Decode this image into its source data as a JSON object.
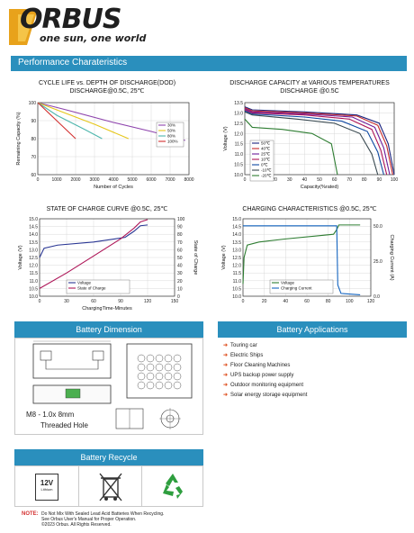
{
  "logo": {
    "brand": "ORBUS",
    "tagline": "one sun, one world"
  },
  "performance_bar": {
    "title": "Performance Charateristics"
  },
  "chart_data": [
    {
      "type": "line",
      "title": "CYCLE LIFE vs. DEPTH OF DISCHARGE(DOD)\nDISCHARGE@0.5C, 25℃",
      "xlabel": "Number of Cycles",
      "ylabel": "Remaining Capacity (%)",
      "xlim": [
        0,
        8000
      ],
      "ylim": [
        60,
        100
      ],
      "xticks": [
        "0",
        "1000",
        "2000",
        "3000",
        "4000",
        "5000",
        "6000",
        "7000",
        "8000"
      ],
      "yticks": [
        "60",
        "70",
        "80",
        "90",
        "100"
      ],
      "legend": "right",
      "series": [
        {
          "name": "30%",
          "color": "#8e44ad",
          "x": [
            0,
            1500,
            4000,
            6000,
            7800
          ],
          "y": [
            100,
            96,
            89,
            84,
            79
          ]
        },
        {
          "name": "50%",
          "color": "#e6c619",
          "x": [
            0,
            1500,
            3000,
            4800
          ],
          "y": [
            100,
            94,
            88,
            80
          ]
        },
        {
          "name": "80%",
          "color": "#4db6ac",
          "x": [
            0,
            1000,
            2500,
            3400
          ],
          "y": [
            100,
            93,
            85,
            80
          ]
        },
        {
          "name": "100%",
          "color": "#d32f2f",
          "x": [
            0,
            800,
            1500,
            2000
          ],
          "y": [
            100,
            92,
            85,
            80
          ]
        }
      ]
    },
    {
      "type": "line",
      "title": "DISCHARGE CAPACITY at VARIOUS TEMPERATURES\nDISCHARGE @0.5C",
      "xlabel": "Capacity(%rated)",
      "ylabel": "Voltage (V)",
      "xlim": [
        0,
        100
      ],
      "ylim": [
        10,
        13.5
      ],
      "xticks": [
        "0",
        "10",
        "20",
        "30",
        "40",
        "50",
        "60",
        "70",
        "80",
        "90",
        "100"
      ],
      "yticks": [
        "10.0",
        "10.5",
        "11.0",
        "11.5",
        "12.0",
        "12.5",
        "13.0",
        "13.5"
      ],
      "legend": "left",
      "series": [
        {
          "name": "50℃",
          "color": "#1a237e",
          "x": [
            0,
            5,
            40,
            75,
            90,
            96,
            100
          ],
          "y": [
            13.3,
            13.15,
            13.05,
            12.9,
            12.5,
            11.5,
            10.0
          ]
        },
        {
          "name": "40℃",
          "color": "#c62828",
          "x": [
            0,
            5,
            40,
            75,
            89,
            95,
            99
          ],
          "y": [
            13.25,
            13.1,
            13.0,
            12.85,
            12.4,
            11.4,
            10.0
          ]
        },
        {
          "name": "25℃",
          "color": "#6a1b9a",
          "x": [
            0,
            5,
            40,
            72,
            87,
            93,
            97
          ],
          "y": [
            13.2,
            13.05,
            12.95,
            12.8,
            12.3,
            11.3,
            10.0
          ]
        },
        {
          "name": "10℃",
          "color": "#ad1457",
          "x": [
            0,
            5,
            40,
            70,
            85,
            91,
            95
          ],
          "y": [
            13.15,
            13.0,
            12.9,
            12.7,
            12.2,
            11.2,
            10.0
          ]
        },
        {
          "name": "0℃",
          "color": "#0d47a1",
          "x": [
            0,
            5,
            40,
            65,
            82,
            89,
            93
          ],
          "y": [
            13.1,
            12.95,
            12.8,
            12.6,
            12.1,
            11.1,
            10.0
          ]
        },
        {
          "name": "-10℃",
          "color": "#37474f",
          "x": [
            0,
            5,
            35,
            60,
            77,
            85,
            89
          ],
          "y": [
            13.05,
            12.9,
            12.7,
            12.5,
            12.0,
            11.0,
            10.0
          ]
        },
        {
          "name": "-20℃",
          "color": "#2e7d32",
          "x": [
            0,
            5,
            25,
            45,
            58,
            62
          ],
          "y": [
            12.7,
            12.3,
            12.2,
            12.0,
            11.5,
            10.0
          ]
        }
      ]
    },
    {
      "type": "line",
      "title": "STATE OF CHARGE CURVE @0.5C, 25℃",
      "xlabel": "ChargingTime-Minutes",
      "ylabel": "Voltage (V)",
      "y2label": "State of Charge",
      "xlim": [
        0,
        150
      ],
      "ylim": [
        10,
        15
      ],
      "y2lim": [
        0,
        100
      ],
      "xticks": [
        "0",
        "30",
        "60",
        "90",
        "120",
        "150"
      ],
      "yticks": [
        "10.0",
        "10.5",
        "11.0",
        "11.5",
        "12.0",
        "12.5",
        "13.0",
        "13.5",
        "14.0",
        "14.5",
        "15.0"
      ],
      "y2ticks": [
        "0",
        "10",
        "20",
        "30",
        "40",
        "50",
        "60",
        "70",
        "80",
        "90",
        "100"
      ],
      "legend": "bottom",
      "series": [
        {
          "name": "Voltage",
          "color": "#283593",
          "axis": "left",
          "x": [
            0,
            5,
            20,
            60,
            95,
            105,
            112,
            120
          ],
          "y": [
            12.5,
            13.1,
            13.3,
            13.5,
            13.8,
            14.2,
            14.55,
            14.6
          ]
        },
        {
          "name": "State of Charge",
          "color": "#ad1457",
          "axis": "right",
          "x": [
            0,
            30,
            60,
            90,
            105,
            112,
            120
          ],
          "y": [
            10,
            30,
            52,
            74,
            88,
            96,
            99
          ]
        }
      ]
    },
    {
      "type": "line",
      "title": "CHARGING CHARACTERISTICS @0.5C, 25℃",
      "xlabel": "",
      "ylabel": "Voltage (V)",
      "y2label": "Charging Current (A)",
      "xlim": [
        0,
        120
      ],
      "ylim": [
        10,
        15
      ],
      "y2lim": [
        0,
        55
      ],
      "xticks": [
        "0",
        "20",
        "40",
        "60",
        "80",
        "100",
        "120"
      ],
      "yticks": [
        "10.0",
        "10.5",
        "11.0",
        "11.5",
        "12.0",
        "12.5",
        "13.0",
        "13.5",
        "14.0",
        "14.5",
        "15.0"
      ],
      "y2ticks": [
        "0.0",
        "25.0",
        "50.0"
      ],
      "legend": "bottom",
      "series": [
        {
          "name": "Voltage",
          "color": "#2e7d32",
          "axis": "left",
          "x": [
            0,
            1,
            4,
            15,
            40,
            70,
            85,
            88,
            90,
            95,
            110
          ],
          "y": [
            10.8,
            12.5,
            13.3,
            13.5,
            13.7,
            13.9,
            14.0,
            14.3,
            14.6,
            14.6,
            14.6
          ]
        },
        {
          "name": "Charging Current",
          "color": "#1565c0",
          "axis": "right",
          "x": [
            0,
            88,
            89,
            92,
            110
          ],
          "y": [
            50,
            50,
            8,
            2,
            1
          ]
        }
      ]
    }
  ],
  "dimension": {
    "title": "Battery Dimension",
    "thread_line1": "M8 - 1.0x 8mm",
    "thread_line2": "Threaded Hole"
  },
  "applications": {
    "title": "Battery Applications",
    "items": [
      "Touring car",
      "Electric Ships",
      "Floor Cleaning Machines",
      "UPS backup power supply",
      "Outdoor monitoring equipment",
      "Solar energy storage equipment"
    ]
  },
  "recycle": {
    "title": "Battery Recycle",
    "battery_voltage": "12V",
    "battery_chem": "Lithium"
  },
  "note": {
    "label": "NOTE:",
    "line1": "Do Not Mix With Sealed Lead Acid Batteries When Recycling.",
    "line2": "See Orbus User's Manual for Proper Operation.",
    "line3": "©2023 Orbus. All Rights Reserved."
  }
}
